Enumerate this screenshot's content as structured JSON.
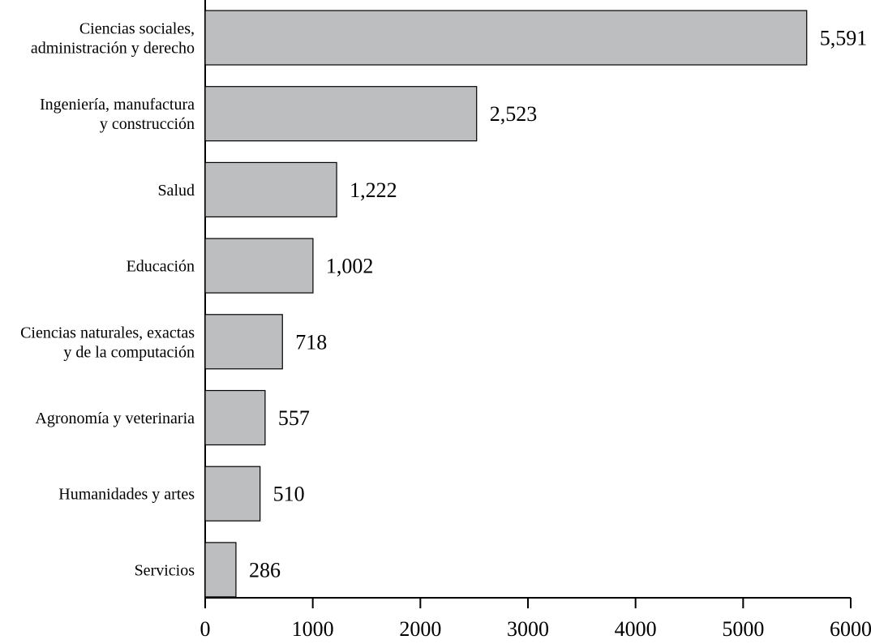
{
  "chart_data": {
    "type": "barh",
    "categories": [
      "Ciencias sociales,\nadministración y derecho",
      "Ingeniería, manufactura\ny construcción",
      "Salud",
      "Educación",
      "Ciencias naturales, exactas\ny de la computación",
      "Agronomía y veterinaria",
      "Humanidades y artes",
      "Servicios"
    ],
    "values": [
      5591,
      2523,
      1222,
      1002,
      718,
      557,
      510,
      286
    ],
    "value_labels": [
      "5,591",
      "2,523",
      "1,222",
      "1,002",
      "718",
      "557",
      "510",
      "286"
    ],
    "color": "#bcbec0",
    "xlim": [
      0,
      6000
    ],
    "xticks": [
      0,
      1000,
      2000,
      3000,
      4000,
      5000,
      6000
    ]
  }
}
